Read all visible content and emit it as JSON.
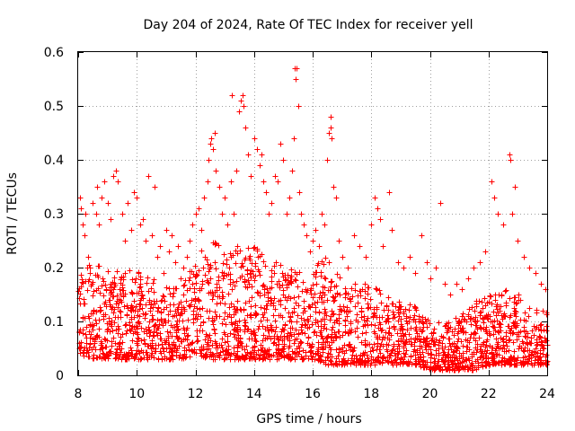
{
  "chart_data": {
    "type": "scatter",
    "title": "Day 204 of 2024, Rate Of TEC Index for receiver yell",
    "xlabel": "GPS time / hours",
    "ylabel": "ROTI / TECUs",
    "xlim": [
      8,
      24
    ],
    "ylim": [
      0,
      0.6
    ],
    "xticks": [
      8,
      10,
      12,
      14,
      16,
      18,
      20,
      22,
      24
    ],
    "xtick_labels": [
      "8",
      "10",
      "12",
      "14",
      "16",
      "18",
      "20",
      "22",
      "24"
    ],
    "yticks": [
      0,
      0.1,
      0.2,
      0.3,
      0.4,
      0.5,
      0.6
    ],
    "ytick_labels": [
      "0",
      "0.1",
      "0.2",
      "0.3",
      "0.4",
      "0.5",
      "0.6"
    ],
    "grid": true,
    "marker": "+",
    "color": "#ff0000",
    "series": [
      {
        "name": "ROTI",
        "points": [
          [
            8.05,
            0.33
          ],
          [
            8.1,
            0.31
          ],
          [
            8.15,
            0.28
          ],
          [
            8.2,
            0.26
          ],
          [
            8.25,
            0.3
          ],
          [
            8.3,
            0.2
          ],
          [
            8.35,
            0.22
          ],
          [
            8.4,
            0.19
          ],
          [
            8.45,
            0.17
          ],
          [
            8.5,
            0.32
          ],
          [
            8.6,
            0.3
          ],
          [
            8.65,
            0.35
          ],
          [
            8.7,
            0.28
          ],
          [
            8.8,
            0.33
          ],
          [
            8.9,
            0.36
          ],
          [
            9.0,
            0.32
          ],
          [
            9.1,
            0.29
          ],
          [
            9.2,
            0.37
          ],
          [
            9.3,
            0.38
          ],
          [
            9.35,
            0.36
          ],
          [
            9.5,
            0.3
          ],
          [
            9.6,
            0.25
          ],
          [
            9.7,
            0.32
          ],
          [
            9.8,
            0.27
          ],
          [
            9.9,
            0.34
          ],
          [
            10.0,
            0.33
          ],
          [
            10.1,
            0.28
          ],
          [
            10.2,
            0.29
          ],
          [
            10.3,
            0.25
          ],
          [
            10.4,
            0.37
          ],
          [
            10.5,
            0.26
          ],
          [
            10.6,
            0.35
          ],
          [
            10.7,
            0.22
          ],
          [
            10.8,
            0.24
          ],
          [
            10.9,
            0.19
          ],
          [
            11.0,
            0.27
          ],
          [
            11.1,
            0.23
          ],
          [
            11.2,
            0.26
          ],
          [
            11.3,
            0.21
          ],
          [
            11.4,
            0.24
          ],
          [
            11.5,
            0.18
          ],
          [
            11.6,
            0.2
          ],
          [
            11.7,
            0.22
          ],
          [
            11.8,
            0.25
          ],
          [
            11.9,
            0.28
          ],
          [
            12.0,
            0.3
          ],
          [
            12.1,
            0.31
          ],
          [
            12.2,
            0.27
          ],
          [
            12.3,
            0.33
          ],
          [
            12.4,
            0.36
          ],
          [
            12.45,
            0.4
          ],
          [
            12.5,
            0.43
          ],
          [
            12.55,
            0.44
          ],
          [
            12.6,
            0.42
          ],
          [
            12.65,
            0.45
          ],
          [
            12.7,
            0.38
          ],
          [
            12.8,
            0.35
          ],
          [
            12.9,
            0.3
          ],
          [
            13.0,
            0.33
          ],
          [
            13.1,
            0.28
          ],
          [
            13.2,
            0.36
          ],
          [
            13.25,
            0.52
          ],
          [
            13.3,
            0.3
          ],
          [
            13.4,
            0.38
          ],
          [
            13.5,
            0.49
          ],
          [
            13.55,
            0.51
          ],
          [
            13.6,
            0.52
          ],
          [
            13.65,
            0.5
          ],
          [
            13.7,
            0.46
          ],
          [
            13.8,
            0.41
          ],
          [
            13.9,
            0.37
          ],
          [
            14.0,
            0.44
          ],
          [
            14.1,
            0.42
          ],
          [
            14.2,
            0.39
          ],
          [
            14.25,
            0.41
          ],
          [
            14.3,
            0.36
          ],
          [
            14.4,
            0.34
          ],
          [
            14.5,
            0.3
          ],
          [
            14.6,
            0.32
          ],
          [
            14.7,
            0.37
          ],
          [
            14.8,
            0.36
          ],
          [
            14.9,
            0.43
          ],
          [
            15.0,
            0.4
          ],
          [
            15.1,
            0.3
          ],
          [
            15.2,
            0.33
          ],
          [
            15.3,
            0.38
          ],
          [
            15.35,
            0.44
          ],
          [
            15.4,
            0.57
          ],
          [
            15.42,
            0.55
          ],
          [
            15.45,
            0.57
          ],
          [
            15.5,
            0.5
          ],
          [
            15.55,
            0.34
          ],
          [
            15.6,
            0.3
          ],
          [
            15.7,
            0.28
          ],
          [
            15.8,
            0.26
          ],
          [
            15.9,
            0.23
          ],
          [
            16.0,
            0.25
          ],
          [
            16.1,
            0.27
          ],
          [
            16.2,
            0.24
          ],
          [
            16.3,
            0.3
          ],
          [
            16.4,
            0.28
          ],
          [
            16.5,
            0.4
          ],
          [
            16.55,
            0.45
          ],
          [
            16.6,
            0.48
          ],
          [
            16.62,
            0.46
          ],
          [
            16.65,
            0.44
          ],
          [
            16.7,
            0.35
          ],
          [
            16.8,
            0.33
          ],
          [
            16.9,
            0.25
          ],
          [
            17.0,
            0.22
          ],
          [
            17.2,
            0.2
          ],
          [
            17.4,
            0.26
          ],
          [
            17.6,
            0.24
          ],
          [
            17.8,
            0.22
          ],
          [
            18.0,
            0.28
          ],
          [
            18.1,
            0.33
          ],
          [
            18.2,
            0.31
          ],
          [
            18.3,
            0.29
          ],
          [
            18.4,
            0.24
          ],
          [
            18.6,
            0.34
          ],
          [
            18.7,
            0.27
          ],
          [
            18.9,
            0.21
          ],
          [
            19.1,
            0.2
          ],
          [
            19.3,
            0.22
          ],
          [
            19.5,
            0.19
          ],
          [
            19.7,
            0.26
          ],
          [
            19.9,
            0.21
          ],
          [
            20.0,
            0.18
          ],
          [
            20.2,
            0.2
          ],
          [
            20.35,
            0.32
          ],
          [
            20.5,
            0.17
          ],
          [
            20.7,
            0.15
          ],
          [
            20.9,
            0.17
          ],
          [
            21.1,
            0.16
          ],
          [
            21.3,
            0.18
          ],
          [
            21.5,
            0.2
          ],
          [
            21.7,
            0.21
          ],
          [
            21.9,
            0.23
          ],
          [
            22.1,
            0.36
          ],
          [
            22.2,
            0.33
          ],
          [
            22.3,
            0.3
          ],
          [
            22.5,
            0.28
          ],
          [
            22.7,
            0.41
          ],
          [
            22.75,
            0.4
          ],
          [
            22.8,
            0.3
          ],
          [
            22.9,
            0.35
          ],
          [
            23.0,
            0.25
          ],
          [
            23.2,
            0.22
          ],
          [
            23.4,
            0.2
          ],
          [
            23.6,
            0.19
          ],
          [
            23.8,
            0.17
          ],
          [
            23.95,
            0.16
          ]
        ],
        "dense_band": {
          "description": "continuous scatter of samples between these bounds",
          "x": [
            8.0,
            8.5,
            9.0,
            9.5,
            10.0,
            10.5,
            11.0,
            11.5,
            12.0,
            12.5,
            13.0,
            13.5,
            14.0,
            14.5,
            15.0,
            15.5,
            16.0,
            16.5,
            17.0,
            17.5,
            18.0,
            18.5,
            19.0,
            19.5,
            20.0,
            20.5,
            21.0,
            21.5,
            22.0,
            22.5,
            23.0,
            23.5,
            24.0
          ],
          "lower": [
            0.04,
            0.03,
            0.03,
            0.03,
            0.03,
            0.03,
            0.03,
            0.03,
            0.04,
            0.03,
            0.03,
            0.03,
            0.03,
            0.03,
            0.03,
            0.03,
            0.03,
            0.02,
            0.02,
            0.02,
            0.02,
            0.02,
            0.02,
            0.02,
            0.01,
            0.01,
            0.01,
            0.01,
            0.02,
            0.02,
            0.02,
            0.02,
            0.02
          ],
          "upper": [
            0.2,
            0.22,
            0.2,
            0.19,
            0.2,
            0.18,
            0.17,
            0.16,
            0.22,
            0.25,
            0.24,
            0.24,
            0.24,
            0.22,
            0.21,
            0.2,
            0.22,
            0.22,
            0.18,
            0.17,
            0.17,
            0.15,
            0.14,
            0.13,
            0.1,
            0.1,
            0.11,
            0.14,
            0.15,
            0.16,
            0.15,
            0.13,
            0.12
          ]
        }
      }
    ]
  }
}
